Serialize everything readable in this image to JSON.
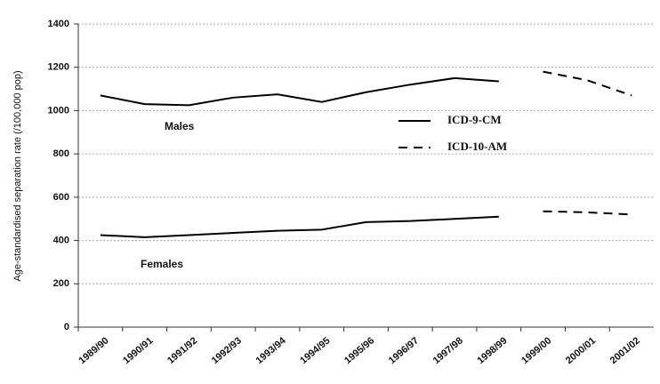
{
  "chart_data": {
    "type": "line",
    "y_label": "Age-standardised separation rate (/100,000 pop)",
    "categories": [
      "1989/90",
      "1990/91",
      "1991/92",
      "1992/93",
      "1993/94",
      "1994/95",
      "1995/96",
      "1996/97",
      "1997/98",
      "1998/99",
      "1999/00",
      "2000/01",
      "2001/02"
    ],
    "legend": [
      {
        "label": "ICD-9-CM",
        "dash": "solid"
      },
      {
        "label": "ICD-10-AM",
        "dash": "dashed"
      }
    ],
    "code": [
      0,
      0,
      0,
      0,
      0,
      0,
      0,
      0,
      0,
      0,
      1,
      1,
      1
    ],
    "series": [
      {
        "name": "Males",
        "color": "#000000",
        "values": [
          1070,
          1030,
          1025,
          1060,
          1075,
          1040,
          1085,
          1120,
          1150,
          1135,
          1180,
          1140,
          1070
        ]
      },
      {
        "name": "Females",
        "color": "#000000",
        "values": [
          425,
          415,
          425,
          435,
          445,
          450,
          485,
          490,
          500,
          510,
          535,
          530,
          520
        ]
      }
    ],
    "ylim": [
      0,
      1400
    ],
    "yticks": [
      0,
      200,
      400,
      600,
      800,
      1000,
      1200,
      1400
    ],
    "grid": true
  }
}
